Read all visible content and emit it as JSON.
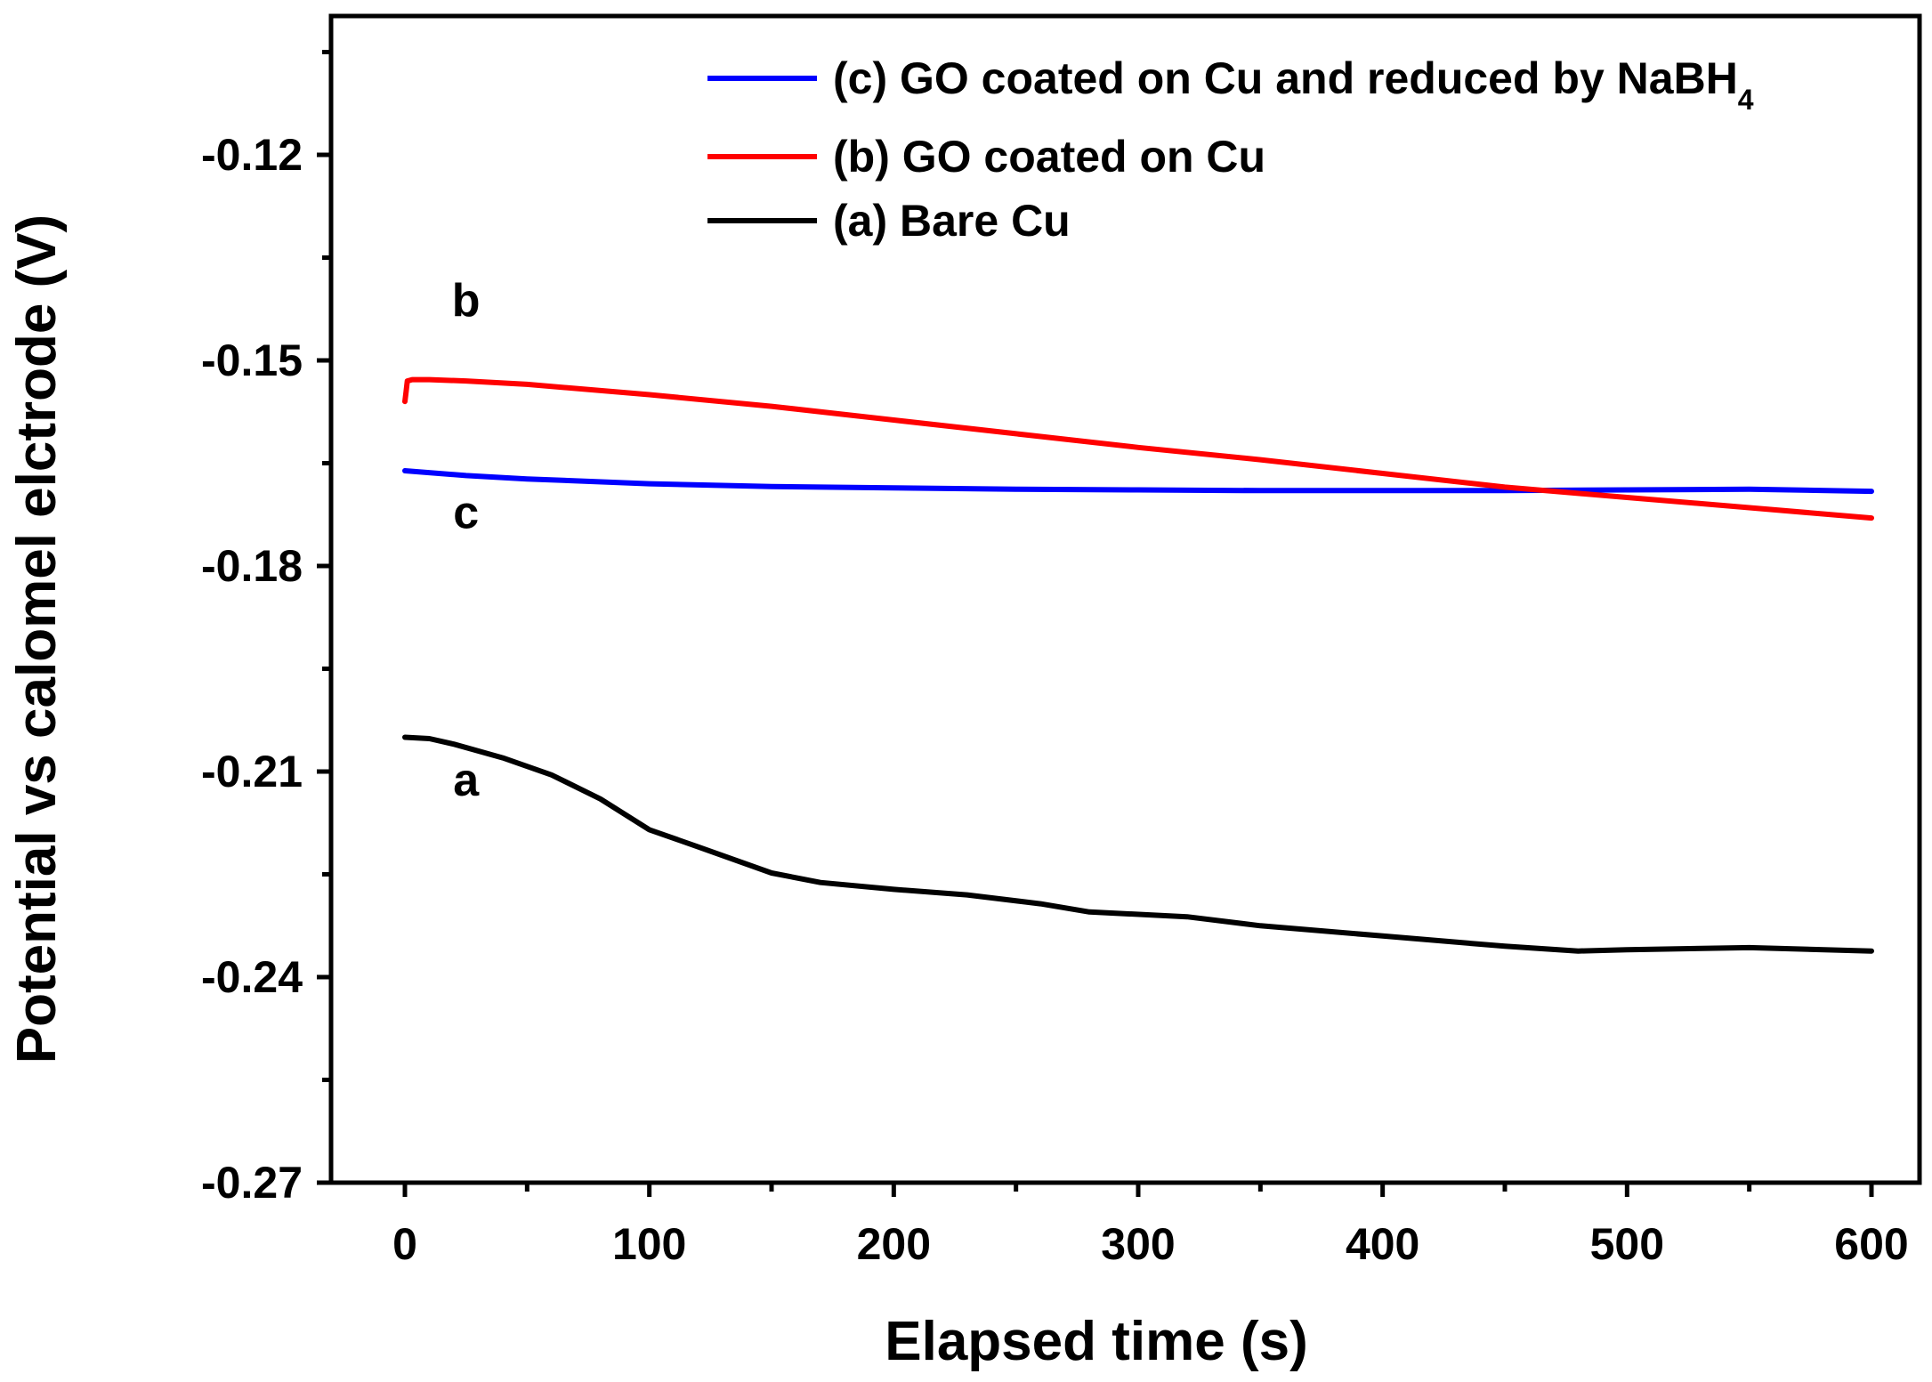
{
  "chart_data": {
    "type": "line",
    "title": "",
    "xlabel": "Elapsed time (s)",
    "ylabel": "Potential vs calomel elctrode (V)",
    "xlim": [
      -30,
      620
    ],
    "ylim": [
      -0.27,
      -0.1
    ],
    "x_ticks": [
      0,
      100,
      200,
      300,
      400,
      500,
      600
    ],
    "x_tick_labels": [
      "0",
      "100",
      "200",
      "300",
      "400",
      "500",
      "600"
    ],
    "y_ticks": [
      -0.27,
      -0.24,
      -0.21,
      -0.18,
      -0.15,
      -0.12
    ],
    "y_tick_labels": [
      "-0.27",
      "-0.24",
      "-0.21",
      "-0.18",
      "-0.15",
      "-0.12"
    ],
    "grid": false,
    "legend_position": "top-right",
    "series": [
      {
        "name": "(c) GO coated on Cu and reduced by NaBH",
        "name_subscript": "4",
        "color": "#0000ff",
        "label": "c",
        "label_at": [
          25,
          -0.1745
        ],
        "x": [
          0,
          25,
          50,
          100,
          150,
          200,
          250,
          300,
          350,
          400,
          450,
          500,
          550,
          600
        ],
        "y": [
          -0.1661,
          -0.1668,
          -0.1673,
          -0.168,
          -0.1684,
          -0.1686,
          -0.1688,
          -0.1689,
          -0.169,
          -0.169,
          -0.169,
          -0.1689,
          -0.1688,
          -0.1691
        ]
      },
      {
        "name": "(b) GO coated on Cu",
        "color": "#ff0000",
        "label": "b",
        "label_at": [
          25,
          -0.1435
        ],
        "x": [
          0,
          0.5,
          1,
          3,
          10,
          25,
          50,
          100,
          150,
          200,
          250,
          300,
          350,
          400,
          450,
          500,
          550,
          600
        ],
        "y": [
          -0.156,
          -0.1545,
          -0.153,
          -0.1528,
          -0.1528,
          -0.153,
          -0.1535,
          -0.155,
          -0.1567,
          -0.1587,
          -0.1607,
          -0.1627,
          -0.1645,
          -0.1665,
          -0.1685,
          -0.17,
          -0.1715,
          -0.173
        ]
      },
      {
        "name": "(a) Bare Cu",
        "color": "#000000",
        "label": "a",
        "label_at": [
          25,
          -0.2135
        ],
        "x": [
          0,
          10,
          20,
          40,
          60,
          80,
          100,
          120,
          150,
          170,
          200,
          230,
          260,
          280,
          320,
          350,
          400,
          450,
          480,
          500,
          550,
          600
        ],
        "y": [
          -0.205,
          -0.2052,
          -0.206,
          -0.208,
          -0.2105,
          -0.214,
          -0.2185,
          -0.221,
          -0.2248,
          -0.2262,
          -0.2272,
          -0.228,
          -0.2293,
          -0.2305,
          -0.2312,
          -0.2325,
          -0.234,
          -0.2355,
          -0.2362,
          -0.236,
          -0.2357,
          -0.2362
        ]
      }
    ]
  }
}
